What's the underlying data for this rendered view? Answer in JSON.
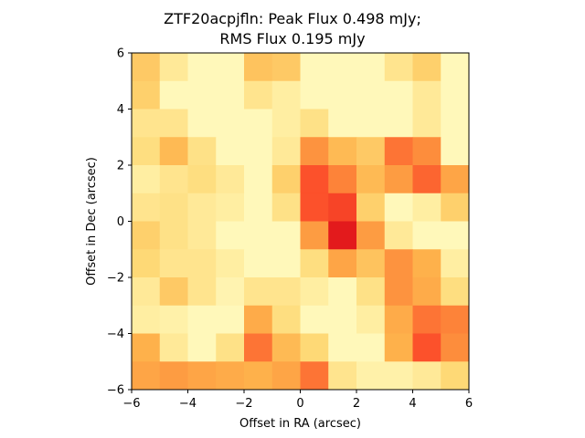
{
  "chart_data": {
    "type": "heatmap",
    "title_line1": "ZTF20acpjfln: Peak Flux 0.498 mJy;",
    "title_line2": "RMS Flux 0.195 mJy",
    "xlabel": "Offset in RA (arcsec)",
    "ylabel": "Offset in Dec (arcsec)",
    "xlim": [
      -6,
      6
    ],
    "ylim": [
      -6,
      6
    ],
    "xticks": [
      -6,
      -4,
      -2,
      0,
      2,
      4,
      6
    ],
    "yticks": [
      -6,
      -4,
      -2,
      0,
      2,
      4,
      6
    ],
    "xtick_labels": [
      "−6",
      "−4",
      "−2",
      "0",
      "2",
      "4",
      "6"
    ],
    "ytick_labels": [
      "−6",
      "−4",
      "−2",
      "0",
      "2",
      "4",
      "6"
    ],
    "grid": false,
    "colormap": "YlOrRd",
    "cell_size_arcsec": 1,
    "rows_top_to_bottom": [
      [
        0.3,
        0.15,
        0.05,
        0.05,
        0.32,
        0.3,
        0.05,
        0.05,
        0.05,
        0.18,
        0.28,
        0.05
      ],
      [
        0.28,
        0.05,
        0.05,
        0.05,
        0.18,
        0.12,
        0.05,
        0.05,
        0.05,
        0.05,
        0.15,
        0.05
      ],
      [
        0.18,
        0.18,
        0.05,
        0.05,
        0.05,
        0.12,
        0.2,
        0.05,
        0.05,
        0.05,
        0.15,
        0.05
      ],
      [
        0.22,
        0.35,
        0.2,
        0.05,
        0.05,
        0.15,
        0.48,
        0.35,
        0.3,
        0.55,
        0.5,
        0.05
      ],
      [
        0.12,
        0.18,
        0.22,
        0.15,
        0.05,
        0.28,
        0.62,
        0.52,
        0.35,
        0.45,
        0.58,
        0.42
      ],
      [
        0.18,
        0.2,
        0.15,
        0.12,
        0.05,
        0.2,
        0.62,
        0.65,
        0.28,
        0.05,
        0.12,
        0.28
      ],
      [
        0.28,
        0.2,
        0.15,
        0.05,
        0.05,
        0.05,
        0.45,
        0.75,
        0.45,
        0.15,
        0.05,
        0.05
      ],
      [
        0.25,
        0.18,
        0.18,
        0.12,
        0.05,
        0.05,
        0.22,
        0.42,
        0.32,
        0.48,
        0.38,
        0.12
      ],
      [
        0.15,
        0.3,
        0.18,
        0.08,
        0.18,
        0.18,
        0.12,
        0.05,
        0.2,
        0.48,
        0.4,
        0.22
      ],
      [
        0.12,
        0.1,
        0.05,
        0.05,
        0.4,
        0.22,
        0.05,
        0.05,
        0.12,
        0.4,
        0.55,
        0.52
      ],
      [
        0.38,
        0.15,
        0.05,
        0.2,
        0.55,
        0.35,
        0.25,
        0.05,
        0.05,
        0.38,
        0.62,
        0.5
      ],
      [
        0.42,
        0.45,
        0.42,
        0.4,
        0.38,
        0.42,
        0.55,
        0.18,
        0.1,
        0.1,
        0.15,
        0.25
      ]
    ]
  }
}
